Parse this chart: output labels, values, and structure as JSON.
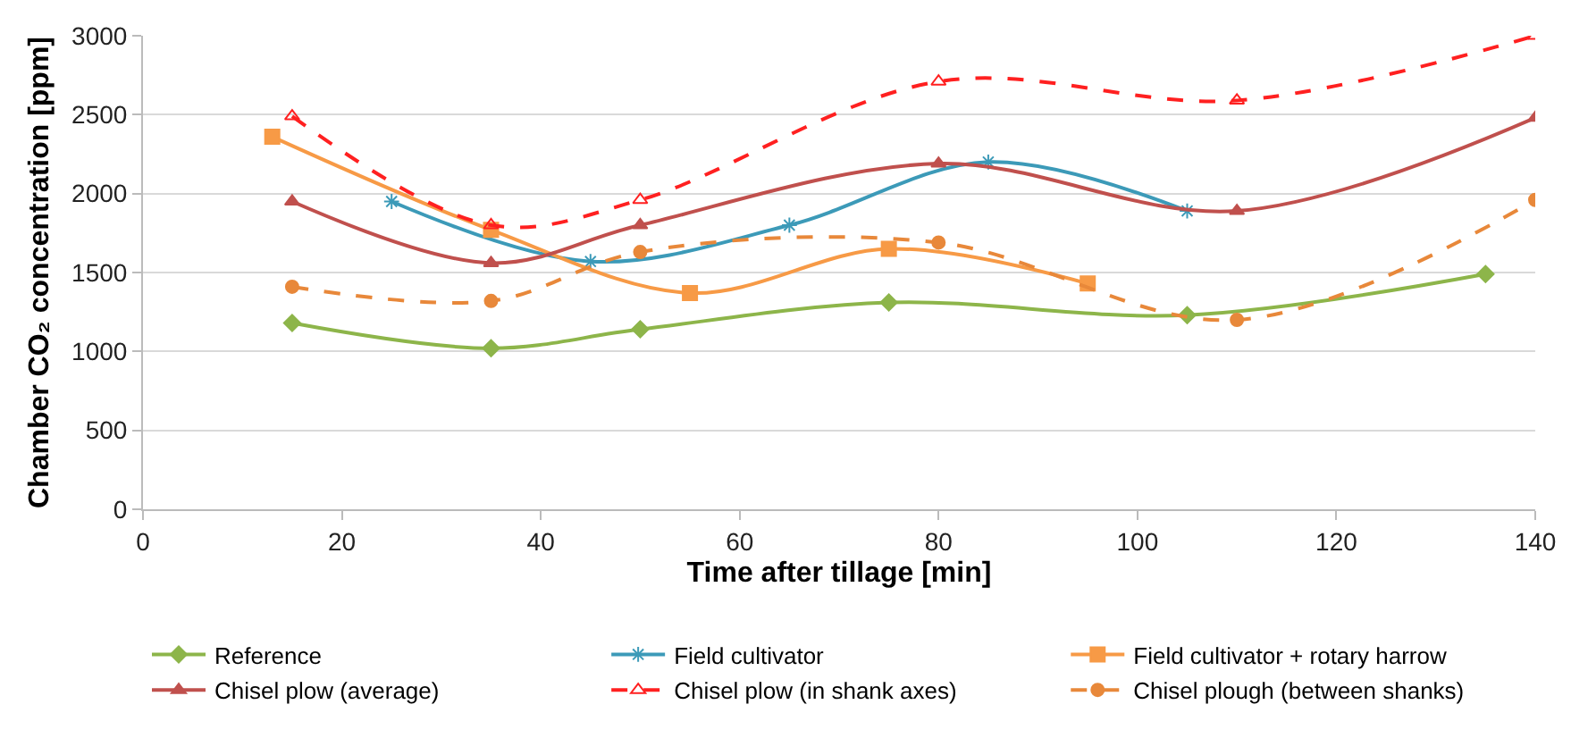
{
  "chart_data": {
    "type": "line",
    "xlabel": "Time after tillage [min]",
    "ylabel": "Chamber CO₂ concentration [ppm]",
    "xlim": [
      0,
      140
    ],
    "xticks": [
      0,
      20,
      40,
      60,
      80,
      100,
      120,
      140
    ],
    "ylim": [
      0,
      3000
    ],
    "yticks": [
      0,
      500,
      1000,
      1500,
      2000,
      2500,
      3000
    ],
    "grid": "y",
    "legend": "bottom",
    "series": [
      {
        "name": "Reference",
        "color": "#8db54a",
        "marker": "diamond",
        "line_style": "solid",
        "x": [
          15,
          35,
          50,
          75,
          105,
          135
        ],
        "values": [
          1180,
          1020,
          1140,
          1310,
          1230,
          1490
        ]
      },
      {
        "name": "Field cultivator",
        "color": "#3c9ab8",
        "marker": "cross",
        "line_style": "solid",
        "x": [
          25,
          45,
          65,
          85,
          105
        ],
        "values": [
          1950,
          1570,
          1800,
          2200,
          1890
        ]
      },
      {
        "name": "Field cultivator + rotary harrow",
        "color": "#f79a46",
        "marker": "square",
        "line_style": "solid",
        "x": [
          13,
          35,
          55,
          75,
          95
        ],
        "values": [
          2360,
          1770,
          1370,
          1650,
          1430
        ]
      },
      {
        "name": "Chisel plow (average)",
        "color": "#c0504d",
        "marker": "triangle",
        "line_style": "solid",
        "x": [
          15,
          35,
          50,
          80,
          110,
          140
        ],
        "values": [
          1950,
          1560,
          1800,
          2190,
          1890,
          2480
        ]
      },
      {
        "name": "Chisel plow (in shank axes)",
        "color": "#ff2020",
        "marker": "triangle-open",
        "line_style": "dashed",
        "x": [
          15,
          35,
          50,
          80,
          110,
          140
        ],
        "values": [
          2490,
          1800,
          1960,
          2710,
          2590,
          3000
        ]
      },
      {
        "name": "Chisel plough (between shanks)",
        "color": "#e8883a",
        "marker": "circle",
        "line_style": "dashed",
        "x": [
          15,
          35,
          50,
          80,
          110,
          140
        ],
        "values": [
          1410,
          1320,
          1630,
          1690,
          1200,
          1960
        ]
      }
    ]
  }
}
